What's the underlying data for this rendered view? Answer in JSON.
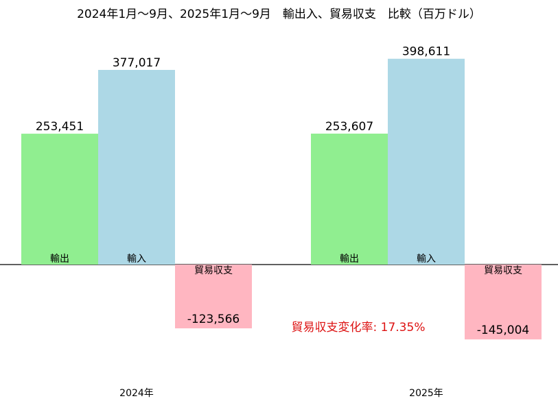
{
  "chart_data": {
    "type": "bar",
    "title": "2024年1月～9月、2025年1月～9月　輸出入、貿易収支　比較（百万ドル）",
    "groups": [
      {
        "label": "2024年",
        "bars": [
          {
            "name": "輸出",
            "value": 253451,
            "value_label": "253,451"
          },
          {
            "name": "輸入",
            "value": 377017,
            "value_label": "377,017"
          },
          {
            "name": "貿易収支",
            "value": -123566,
            "value_label": "-123,566"
          }
        ]
      },
      {
        "label": "2025年",
        "bars": [
          {
            "name": "輸出",
            "value": 253607,
            "value_label": "253,607"
          },
          {
            "name": "輸入",
            "value": 398611,
            "value_label": "398,611"
          },
          {
            "name": "貿易収支",
            "value": -145004,
            "value_label": "-145,004"
          }
        ]
      }
    ],
    "colors": {
      "輸出": "#90ee90",
      "輸入": "#add8e6",
      "貿易収支": "#ffb6c1"
    },
    "annotation": {
      "text": "貿易収支変化率: 17.35%",
      "color": "#dd1111"
    },
    "ylim": [
      -186000,
      430000
    ],
    "axes": false,
    "grid": false
  }
}
